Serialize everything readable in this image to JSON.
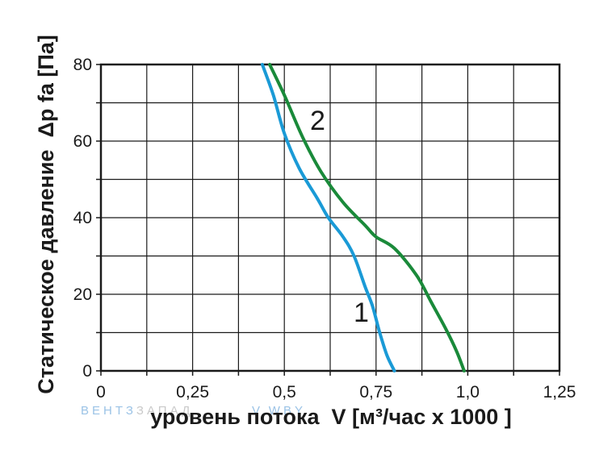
{
  "chart_data": {
    "type": "line",
    "xlabel": "уровень потока  V [м³/час x 1000 ]",
    "ylabel": "Статическое давление  Δp fa [Па]",
    "xlim": [
      0,
      1.25
    ],
    "ylim": [
      0,
      80
    ],
    "x_ticks": [
      "0",
      "0,25",
      "0,5",
      "0,75",
      "1,0",
      "1,25"
    ],
    "y_ticks": [
      "0",
      "20",
      "40",
      "60",
      "80"
    ],
    "grid": true,
    "series": [
      {
        "name": "1",
        "color": "#1a9ad6",
        "points": [
          [
            0.44,
            80
          ],
          [
            0.47,
            72
          ],
          [
            0.5,
            62
          ],
          [
            0.54,
            53
          ],
          [
            0.59,
            45
          ],
          [
            0.62,
            40
          ],
          [
            0.66,
            35
          ],
          [
            0.69,
            30
          ],
          [
            0.72,
            22
          ],
          [
            0.74,
            17
          ],
          [
            0.76,
            10
          ],
          [
            0.78,
            4
          ],
          [
            0.8,
            0
          ]
        ]
      },
      {
        "name": "2",
        "color": "#1a8a3a",
        "points": [
          [
            0.46,
            80
          ],
          [
            0.5,
            72
          ],
          [
            0.55,
            61
          ],
          [
            0.6,
            52
          ],
          [
            0.66,
            44
          ],
          [
            0.72,
            38
          ],
          [
            0.75,
            35
          ],
          [
            0.8,
            32
          ],
          [
            0.86,
            25
          ],
          [
            0.9,
            18
          ],
          [
            0.94,
            11
          ],
          [
            0.97,
            5
          ],
          [
            0.99,
            0
          ]
        ]
      }
    ]
  },
  "watermark": {
    "part1": "ВЕНТЗ",
    "part2": "ЗАПАД",
    "part3": "V.WBY"
  }
}
